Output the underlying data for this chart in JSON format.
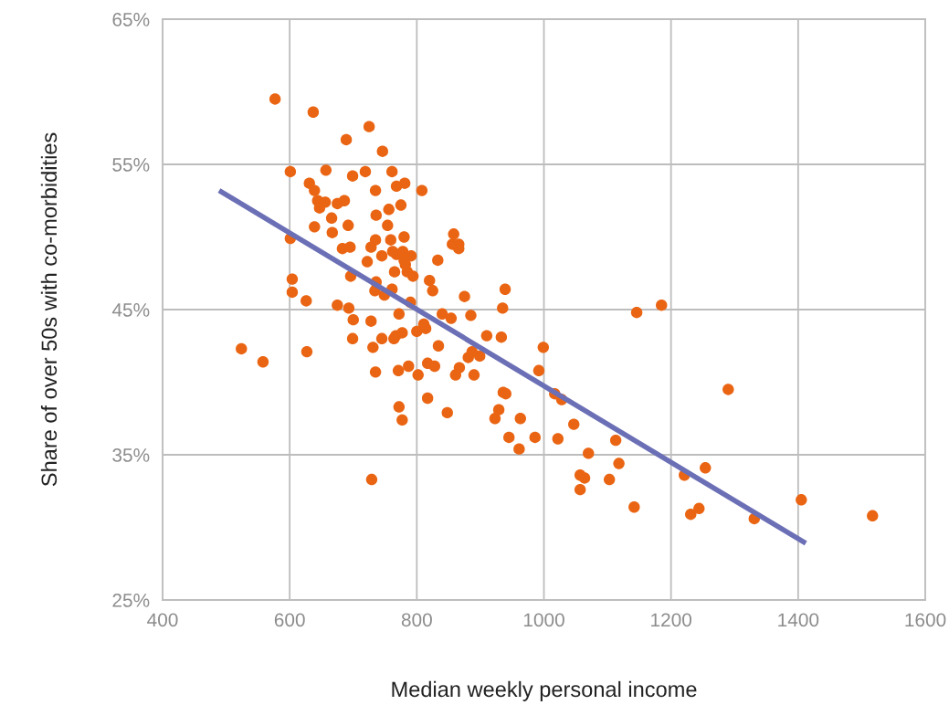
{
  "chart_data": {
    "type": "scatter",
    "xlabel": "Median weekly personal income",
    "ylabel": "Share of over 50s with co-morbidities",
    "xlim": [
      400,
      1600
    ],
    "xticks": [
      400,
      600,
      800,
      1000,
      1200,
      1400,
      1600
    ],
    "ylim": [
      25,
      65
    ],
    "yticks": [
      {
        "value": 25,
        "label": "25%"
      },
      {
        "value": 35,
        "label": "35%"
      },
      {
        "value": 45,
        "label": "45%"
      },
      {
        "value": 55,
        "label": "55%"
      },
      {
        "value": 65,
        "label": "65%"
      }
    ],
    "grid": true,
    "series": [
      {
        "marker": "circle",
        "color": "#ea6513",
        "x": [
          577,
          637,
          524,
          558,
          601,
          601,
          604,
          604,
          626,
          627,
          631,
          639,
          639,
          644,
          647,
          656,
          657,
          666,
          667,
          675,
          675,
          683,
          686,
          689,
          692,
          693,
          695,
          696,
          699,
          699,
          700,
          719,
          722,
          728,
          728,
          731,
          725,
          735,
          736,
          736,
          735,
          734,
          735,
          745,
          745,
          746,
          749,
          754,
          756,
          759,
          761,
          761,
          762,
          764,
          765,
          767,
          768,
          768,
          771,
          772,
          772,
          775,
          777,
          778,
          780,
          780,
          781,
          782,
          785,
          777,
          787,
          790,
          791,
          794,
          800,
          802,
          808,
          811,
          814,
          817,
          817,
          820,
          825,
          828,
          833,
          834,
          840,
          848,
          854,
          856,
          858,
          861,
          866,
          866,
          867,
          875,
          881,
          885,
          887,
          890,
          899,
          910,
          923,
          929,
          933,
          935,
          936,
          939,
          940,
          945,
          963,
          961,
          986,
          992,
          999,
          1017,
          1022,
          1028,
          1047,
          1057,
          1057,
          1064,
          1070,
          1103,
          1113,
          1118,
          1142,
          1146,
          1185,
          1221,
          1231,
          1244,
          1254,
          1290,
          1331,
          1405,
          1517,
          729
        ],
        "values": [
          59.5,
          58.6,
          42.3,
          41.4,
          54.5,
          49.9,
          47.1,
          46.2,
          45.6,
          42.1,
          53.7,
          53.2,
          50.7,
          52.5,
          52.0,
          52.4,
          54.6,
          51.3,
          50.3,
          52.3,
          45.3,
          49.2,
          52.5,
          56.7,
          50.8,
          45.1,
          49.3,
          47.3,
          43.0,
          54.2,
          44.3,
          54.5,
          48.3,
          49.3,
          44.2,
          42.4,
          57.6,
          53.2,
          51.5,
          46.9,
          49.8,
          46.3,
          40.7,
          48.7,
          43.0,
          55.9,
          46.0,
          50.8,
          51.9,
          49.8,
          54.5,
          46.4,
          49.0,
          43.0,
          47.6,
          43.2,
          48.8,
          53.5,
          40.8,
          44.7,
          38.3,
          52.2,
          43.4,
          49.0,
          50.0,
          48.4,
          53.7,
          48.1,
          47.6,
          37.4,
          41.1,
          45.5,
          48.7,
          47.3,
          43.5,
          40.5,
          53.2,
          44.0,
          43.7,
          41.3,
          38.9,
          47.0,
          46.3,
          41.1,
          48.4,
          42.5,
          44.7,
          37.9,
          44.4,
          49.5,
          50.2,
          40.5,
          49.5,
          49.2,
          41.0,
          45.9,
          41.7,
          44.6,
          42.1,
          40.5,
          41.8,
          43.2,
          37.5,
          38.1,
          43.1,
          45.1,
          39.3,
          46.4,
          39.2,
          36.2,
          37.5,
          35.4,
          36.2,
          40.8,
          42.4,
          39.2,
          36.1,
          38.8,
          37.1,
          33.6,
          32.6,
          33.4,
          35.1,
          33.3,
          36.0,
          34.4,
          31.4,
          44.8,
          45.3,
          33.6,
          30.9,
          31.3,
          34.1,
          39.5,
          30.6,
          31.9,
          30.8,
          33.3
        ]
      },
      {
        "type": "line",
        "marker": "none",
        "color": "#6b6fb5",
        "x": [
          489,
          1412
        ],
        "values": [
          53.2,
          28.9
        ]
      }
    ]
  }
}
